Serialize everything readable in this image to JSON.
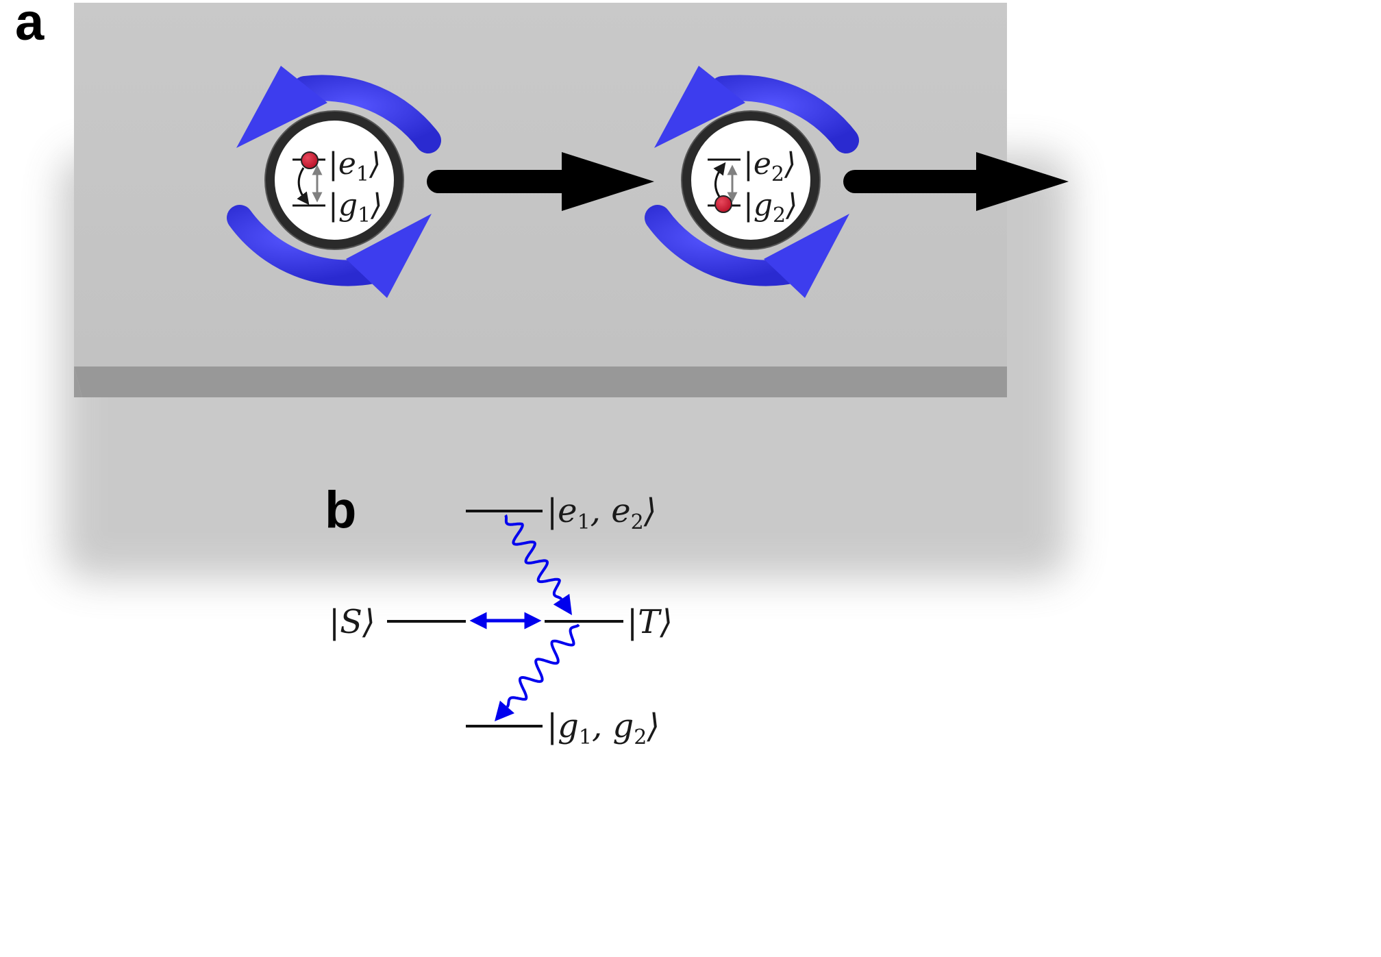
{
  "panel_a": {
    "label": "a",
    "atom_1": {
      "excited": "|e",
      "excited_sub": "1",
      "ground": "|g",
      "ground_sub": "1",
      "close": "⟩"
    },
    "atom_2": {
      "excited": "|e",
      "excited_sub": "2",
      "ground": "|g",
      "ground_sub": "2",
      "close": "⟩"
    }
  },
  "panel_b": {
    "label": "b",
    "level_top": {
      "open": "|e",
      "sub1": "1",
      "mid": ", e",
      "sub2": "2",
      "close": "⟩"
    },
    "level_singlet": {
      "text": "|S⟩"
    },
    "level_triplet": {
      "text": "|T⟩"
    },
    "level_bottom": {
      "open": "|g",
      "sub1": "1",
      "mid": ", g",
      "sub2": "2",
      "close": "⟩"
    }
  },
  "colors": {
    "slab_top": "#c6c6c6",
    "slab_front": "#979797",
    "chirality_arrow": "#3d3dee",
    "waveguide_arrow": "#000000",
    "atom": "#c8102e",
    "transition_arrow": "#0000ee",
    "inner_transition": "#808080"
  }
}
